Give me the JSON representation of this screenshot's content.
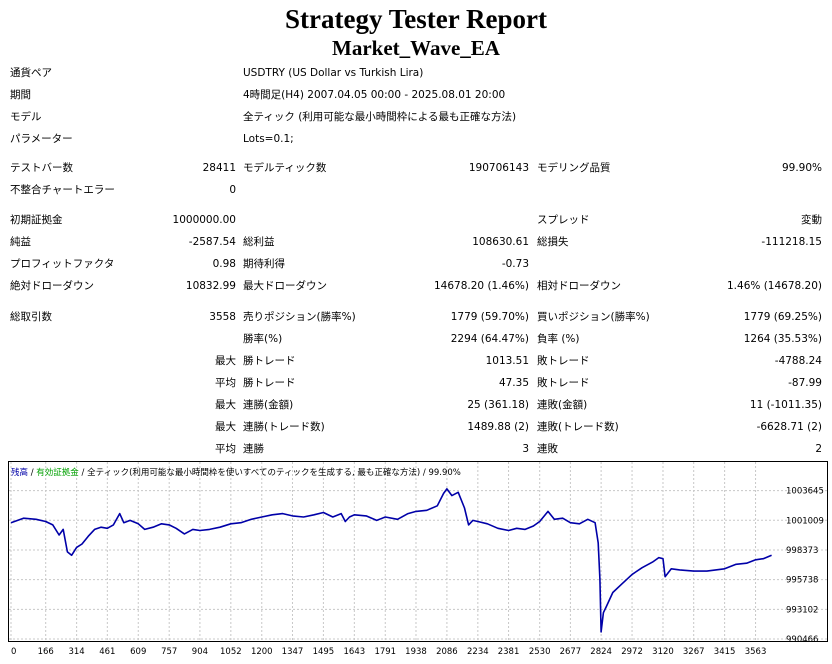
{
  "header": {
    "title": "Strategy Tester Report",
    "subtitle": "Market_Wave_EA"
  },
  "info": [
    {
      "label": "通貨ペア",
      "value": "USDTRY (US Dollar vs Turkish Lira)"
    },
    {
      "label": "期間",
      "value": "4時間足(H4) 2007.04.05 00:00 - 2025.08.01 20:00"
    },
    {
      "label": "モデル",
      "value": "全ティック (利用可能な最小時間枠による最も正確な方法)"
    },
    {
      "label": "パラメーター",
      "value": "Lots=0.1;"
    }
  ],
  "stats": {
    "bars_label": "テストバー数",
    "bars": "28411",
    "ticks_label": "モデルティック数",
    "ticks": "190706143",
    "quality_label": "モデリング品質",
    "quality": "99.90%",
    "mismatch_label": "不整合チャートエラー",
    "mismatch": "0",
    "deposit_label": "初期証拠金",
    "deposit": "1000000.00",
    "spread_label": "スプレッド",
    "spread": "変動",
    "net_label": "純益",
    "net": "-2587.54",
    "gross_profit_label": "総利益",
    "gross_profit": "108630.61",
    "gross_loss_label": "総損失",
    "gross_loss": "-111218.15",
    "pf_label": "プロフィットファクタ",
    "pf": "0.98",
    "expected_label": "期待利得",
    "expected": "-0.73",
    "abs_dd_label": "絶対ドローダウン",
    "abs_dd": "10832.99",
    "max_dd_label": "最大ドローダウン",
    "max_dd": "14678.20 (1.46%)",
    "rel_dd_label": "相対ドローダウン",
    "rel_dd": "1.46% (14678.20)",
    "total_label": "総取引数",
    "total": "3558",
    "short_label": "売りポジション(勝率%)",
    "short": "1779 (59.70%)",
    "long_label": "買いポジション(勝率%)",
    "long": "1779 (69.25%)",
    "win_label": "勝率(%)",
    "win": "2294 (64.47%)",
    "loss_label": "負率 (%)",
    "loss": "1264 (35.53%)",
    "max_prefix": "最大",
    "avg_prefix": "平均",
    "lw_label": "勝トレード",
    "lw": "1013.51",
    "ll_label": "敗トレード",
    "ll": "-4788.24",
    "aw_label": "勝トレード",
    "aw": "47.35",
    "al_label": "敗トレード",
    "al": "-87.99",
    "mcw_label": "連勝(金額)",
    "mcw": "25 (361.18)",
    "mcl_label": "連敗(金額)",
    "mcl": "11 (-1011.35)",
    "mcp_label": "連勝(トレード数)",
    "mcp": "1489.88 (2)",
    "mcls_label": "連敗(トレード数)",
    "mcls": "-6628.71 (2)",
    "acw_label": "連勝",
    "acw": "3",
    "acl_label": "連敗",
    "acl": "2"
  },
  "chart_data": {
    "type": "line",
    "legend": {
      "balance": "残高",
      "sep1": " / ",
      "equity": "有効証拠金",
      "sep2": " / ",
      "model": "全ティック(利用可能な最小時間枠を使いすべてのティックを生成する, 最も正確な方法)",
      "sep3": " / ",
      "quality": "99.90%"
    },
    "y_ticks": [
      1003645,
      1001009,
      998373,
      995738,
      993102,
      990466
    ],
    "x_ticks": [
      0,
      166,
      314,
      461,
      609,
      757,
      904,
      1052,
      1200,
      1347,
      1495,
      1643,
      1791,
      1938,
      2086,
      2234,
      2381,
      2530,
      2677,
      2824,
      2972,
      3120,
      3267,
      3415,
      3563
    ],
    "ylim": [
      990466,
      1004500
    ],
    "xlim": [
      0,
      3680
    ],
    "series": [
      {
        "color": "#0000a8",
        "points": [
          [
            0,
            1000800
          ],
          [
            60,
            1001200
          ],
          [
            120,
            1001100
          ],
          [
            166,
            1000900
          ],
          [
            200,
            1000600
          ],
          [
            230,
            999700
          ],
          [
            250,
            1000200
          ],
          [
            270,
            998200
          ],
          [
            290,
            997900
          ],
          [
            314,
            998600
          ],
          [
            340,
            998900
          ],
          [
            370,
            999600
          ],
          [
            400,
            1000200
          ],
          [
            430,
            1000400
          ],
          [
            461,
            1000300
          ],
          [
            490,
            1000600
          ],
          [
            520,
            1001600
          ],
          [
            540,
            1000800
          ],
          [
            570,
            1001000
          ],
          [
            609,
            1000700
          ],
          [
            640,
            1000200
          ],
          [
            680,
            1000400
          ],
          [
            720,
            1000700
          ],
          [
            757,
            1000600
          ],
          [
            790,
            1000300
          ],
          [
            830,
            999800
          ],
          [
            870,
            1000200
          ],
          [
            904,
            1000100
          ],
          [
            950,
            1000200
          ],
          [
            1000,
            1000400
          ],
          [
            1052,
            1000700
          ],
          [
            1100,
            1000800
          ],
          [
            1150,
            1001100
          ],
          [
            1200,
            1001300
          ],
          [
            1250,
            1001500
          ],
          [
            1300,
            1001600
          ],
          [
            1347,
            1001400
          ],
          [
            1400,
            1001300
          ],
          [
            1450,
            1001500
          ],
          [
            1495,
            1001700
          ],
          [
            1540,
            1001300
          ],
          [
            1580,
            1001600
          ],
          [
            1600,
            1000900
          ],
          [
            1620,
            1001300
          ],
          [
            1643,
            1001500
          ],
          [
            1700,
            1001400
          ],
          [
            1750,
            1001000
          ],
          [
            1791,
            1001300
          ],
          [
            1850,
            1001100
          ],
          [
            1900,
            1001600
          ],
          [
            1938,
            1001800
          ],
          [
            1990,
            1001900
          ],
          [
            2040,
            1002300
          ],
          [
            2070,
            1003400
          ],
          [
            2086,
            1003800
          ],
          [
            2110,
            1003200
          ],
          [
            2140,
            1003500
          ],
          [
            2170,
            1002100
          ],
          [
            2190,
            1000600
          ],
          [
            2210,
            1001000
          ],
          [
            2234,
            1000900
          ],
          [
            2280,
            1000700
          ],
          [
            2330,
            1000300
          ],
          [
            2381,
            1000100
          ],
          [
            2420,
            1000300
          ],
          [
            2460,
            1000200
          ],
          [
            2500,
            1000500
          ],
          [
            2530,
            1000900
          ],
          [
            2570,
            1001800
          ],
          [
            2600,
            1001100
          ],
          [
            2640,
            1001200
          ],
          [
            2677,
            1000800
          ],
          [
            2720,
            1000700
          ],
          [
            2760,
            1001100
          ],
          [
            2795,
            1000800
          ],
          [
            2810,
            999000
          ],
          [
            2818,
            995800
          ],
          [
            2824,
            991100
          ],
          [
            2835,
            992800
          ],
          [
            2850,
            993400
          ],
          [
            2880,
            994600
          ],
          [
            2920,
            995300
          ],
          [
            2972,
            996200
          ],
          [
            3020,
            996800
          ],
          [
            3070,
            997300
          ],
          [
            3100,
            997700
          ],
          [
            3120,
            997600
          ],
          [
            3130,
            996000
          ],
          [
            3160,
            996700
          ],
          [
            3200,
            996600
          ],
          [
            3267,
            996500
          ],
          [
            3330,
            996500
          ],
          [
            3415,
            996700
          ],
          [
            3470,
            997100
          ],
          [
            3520,
            997200
          ],
          [
            3563,
            997500
          ],
          [
            3600,
            997600
          ],
          [
            3640,
            997900
          ]
        ]
      }
    ]
  }
}
